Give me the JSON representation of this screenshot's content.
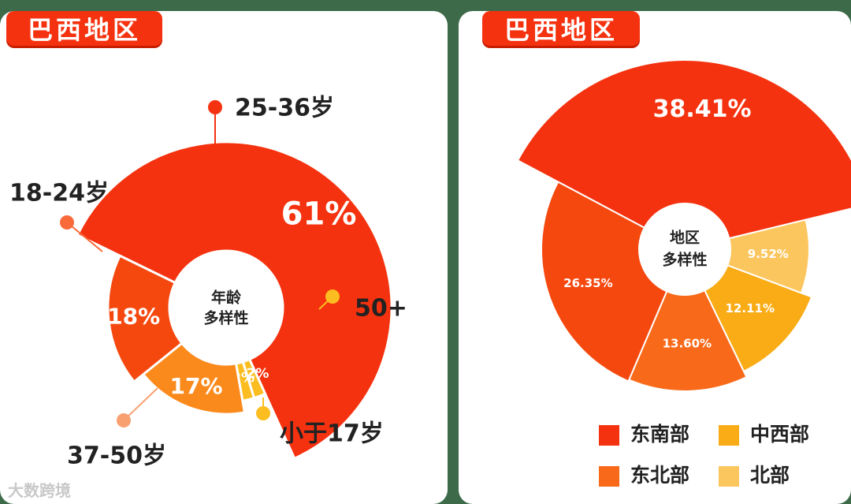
{
  "left_panel": {
    "tag": "巴西地区"
  },
  "right_panel": {
    "tag": "巴西地区"
  },
  "watermark": "大数跨境",
  "chart_data": [
    {
      "type": "pie",
      "center_label": [
        "年龄",
        "多样性"
      ],
      "slices": [
        {
          "label": "25-36岁",
          "value": 61,
          "display": "61%",
          "color": "#f5320f"
        },
        {
          "label": "50+",
          "value": 2,
          "display": "2%",
          "color": "#fbbd1f"
        },
        {
          "label": "小于17岁",
          "value": 2,
          "display": "2%",
          "color": "#fbbd1f"
        },
        {
          "label": "37-50岁",
          "value": 17,
          "display": "17%",
          "color": "#fb8a1c"
        },
        {
          "label": "18-24岁",
          "value": 18,
          "display": "18%",
          "color": "#f5480f"
        }
      ]
    },
    {
      "type": "pie",
      "center_label": [
        "地区",
        "多样性"
      ],
      "slices": [
        {
          "label": "东南部",
          "value": 38.41,
          "display": "38.41%",
          "color": "#f5320f"
        },
        {
          "label": "北部",
          "value": 9.52,
          "display": "9.52%",
          "color": "#fcc65e"
        },
        {
          "label": "中西部",
          "value": 12.11,
          "display": "12.11%",
          "color": "#f9ac16"
        },
        {
          "label": "东北部",
          "value": 13.6,
          "display": "13.60%",
          "color": "#f86a1a"
        },
        {
          "label": "",
          "value": 26.35,
          "display": "26.35%",
          "color": "#f5480f"
        }
      ],
      "legend": [
        {
          "label": "东南部",
          "color": "#f5320f"
        },
        {
          "label": "中西部",
          "color": "#f9ac16"
        },
        {
          "label": "东北部",
          "color": "#f86a1a"
        },
        {
          "label": "北部",
          "color": "#fcc65e"
        }
      ]
    }
  ]
}
